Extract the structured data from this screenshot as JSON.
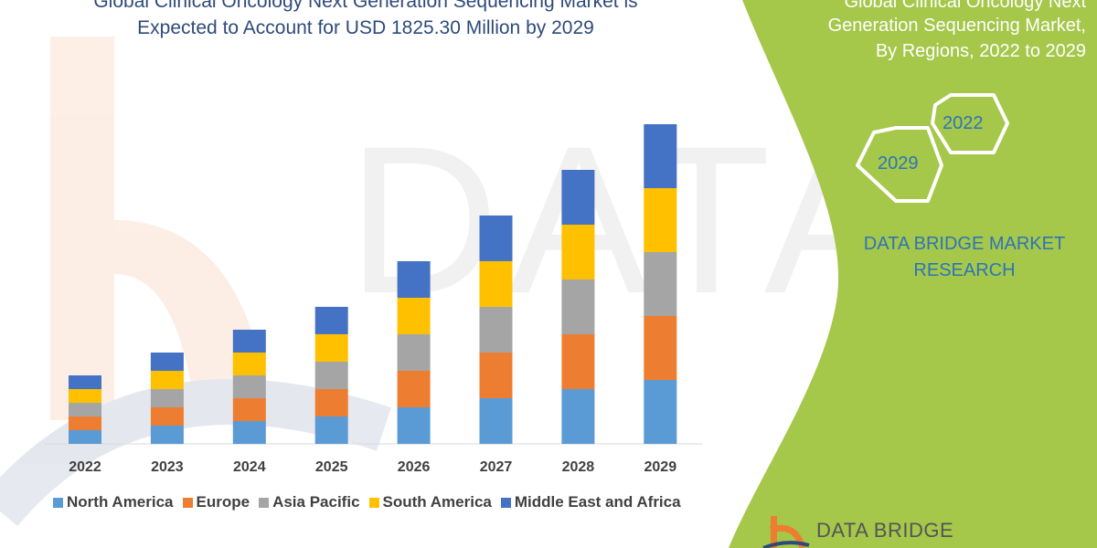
{
  "title_lines": [
    "Global Clinical Oncology Next Generation Sequencing Market is",
    "Expected to Account for USD 1825.30 Million by 2029"
  ],
  "side_panel": {
    "title_lines": [
      "Global Clinical Oncology Next",
      "Generation Sequencing Market,",
      "By Regions, 2022 to 2029"
    ],
    "hex_labels": [
      "2022",
      "2029"
    ],
    "brand_lines": [
      "DATA BRIDGE MARKET",
      "RESEARCH"
    ],
    "logo_text": "DATA BRIDGE",
    "watermark_text": "DATA BRIDGE",
    "panel_color": "#a5c74a"
  },
  "chart_data": {
    "type": "bar",
    "stacked": true,
    "title": "Global Clinical Oncology Next Generation Sequencing Market is Expected to Account for USD 1825.30 Million by 2029",
    "xlabel": "",
    "ylabel": "",
    "y_axis_shown": false,
    "grid": false,
    "legend_position": "bottom",
    "ylim": [
      0,
      1900
    ],
    "categories": [
      "2022",
      "2023",
      "2024",
      "2025",
      "2026",
      "2027",
      "2028",
      "2029"
    ],
    "series": [
      {
        "name": "North America",
        "color": "#5b9bd5",
        "values": [
          78.2,
          104.3,
          130.4,
          156.5,
          208.6,
          260.8,
          312.9,
          365.1
        ]
      },
      {
        "name": "Europe",
        "color": "#ed7d31",
        "values": [
          78.2,
          104.3,
          130.4,
          156.5,
          208.6,
          260.8,
          312.9,
          365.1
        ]
      },
      {
        "name": "Asia Pacific",
        "color": "#a5a5a5",
        "values": [
          78.2,
          104.3,
          130.4,
          156.5,
          208.6,
          260.8,
          312.9,
          365.0
        ]
      },
      {
        "name": "South America",
        "color": "#ffc000",
        "values": [
          78.2,
          104.3,
          130.4,
          156.5,
          208.6,
          260.8,
          312.9,
          365.0
        ]
      },
      {
        "name": "Middle East and Africa",
        "color": "#4472c4",
        "values": [
          78.2,
          104.3,
          130.4,
          156.5,
          208.6,
          260.8,
          312.9,
          365.1
        ]
      }
    ]
  }
}
